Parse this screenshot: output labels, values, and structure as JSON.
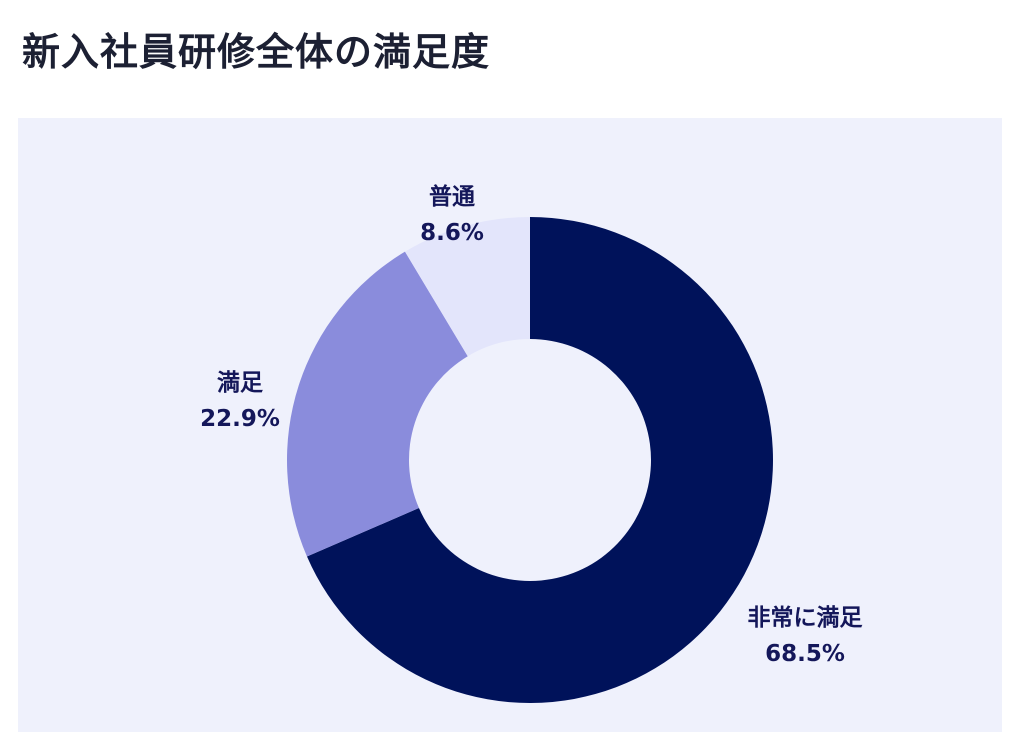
{
  "title": "新入社員研修全体の満足度",
  "colors": {
    "background": "#ffffff",
    "panel": "#eff1fc",
    "title_text": "#1c2033",
    "label_text": "#14175a"
  },
  "chart_data": {
    "type": "pie",
    "subtype": "donut",
    "title": "新入社員研修全体の満足度",
    "start_angle_deg": 0,
    "direction": "clockwise",
    "slices": [
      {
        "label": "非常に満足",
        "value": 68.5,
        "value_label": "68.5%",
        "color": "#00125a"
      },
      {
        "label": "満足",
        "value": 22.9,
        "value_label": "22.9%",
        "color": "#8a8cdc"
      },
      {
        "label": "普通",
        "value": 8.6,
        "value_label": "8.6%",
        "color": "#e3e5fb"
      }
    ]
  }
}
